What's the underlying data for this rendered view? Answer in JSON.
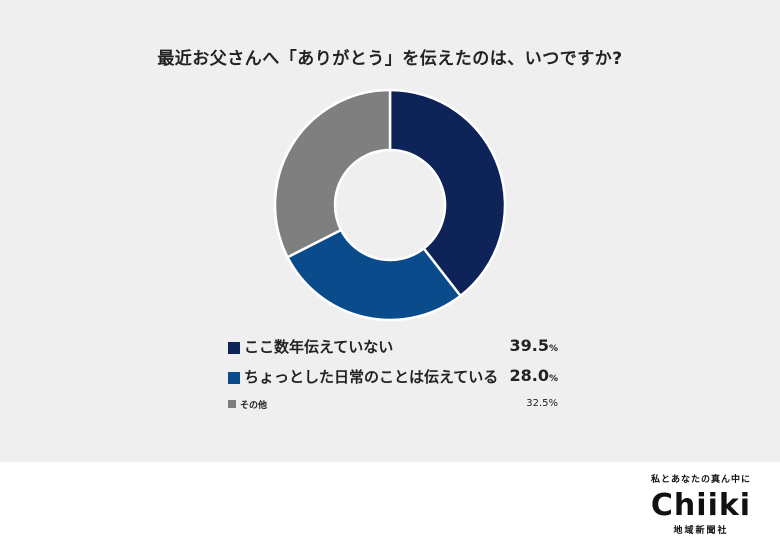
{
  "chart_data": {
    "type": "pie",
    "title": "最近お父さんへ「ありがとう」を伝えたのは、いつですか?",
    "categories": [
      "ここ数年伝えていない",
      "ちょっとした日常のことは伝えている",
      "その他"
    ],
    "values": [
      39.5,
      28.0,
      32.5
    ],
    "value_labels": [
      "39.5",
      "28.0",
      "32.5"
    ],
    "unit": "%",
    "colors": [
      "#0e2357",
      "#0a4b8c",
      "#7f7f7f"
    ],
    "donut": true,
    "legend_placement": "bottom"
  },
  "logo": {
    "tagline": "私とあなたの真ん中に",
    "name": "Chiiki",
    "subtitle": "地域新聞社"
  }
}
